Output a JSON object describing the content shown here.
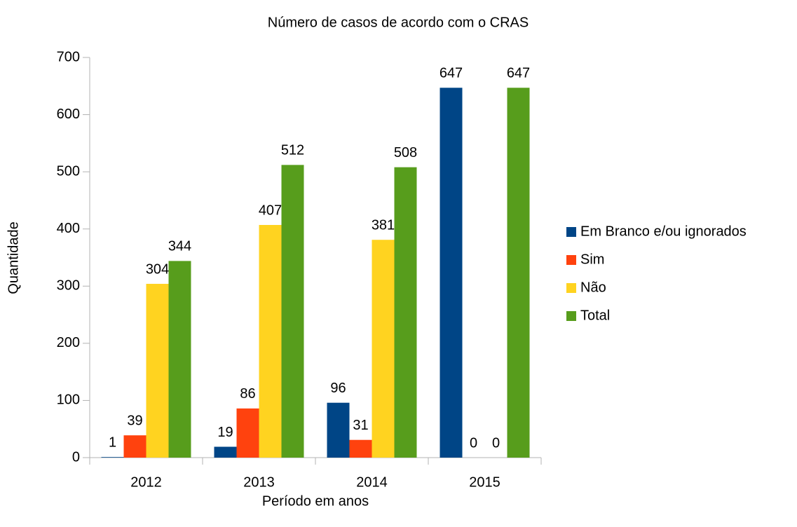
{
  "chart_data": {
    "type": "bar",
    "title": "Número de casos de acordo com o CRAS",
    "x_label": "Período em anos",
    "y_label": "Quantidade",
    "categories": [
      "2012",
      "2013",
      "2014",
      "2015"
    ],
    "series": [
      {
        "name": "Em Branco e/ou ignorados",
        "color": "#004586",
        "values": [
          1,
          19,
          96,
          647
        ]
      },
      {
        "name": "Sim",
        "color": "#ff420e",
        "values": [
          39,
          86,
          31,
          0
        ]
      },
      {
        "name": "Não",
        "color": "#ffd320",
        "values": [
          304,
          407,
          381,
          0
        ]
      },
      {
        "name": "Total",
        "color": "#579d1c",
        "values": [
          344,
          512,
          508,
          647
        ]
      }
    ],
    "ylim": [
      0,
      700
    ],
    "yticks": [
      0,
      100,
      200,
      300,
      400,
      500,
      600,
      700
    ],
    "grid": false,
    "legend": "right"
  }
}
